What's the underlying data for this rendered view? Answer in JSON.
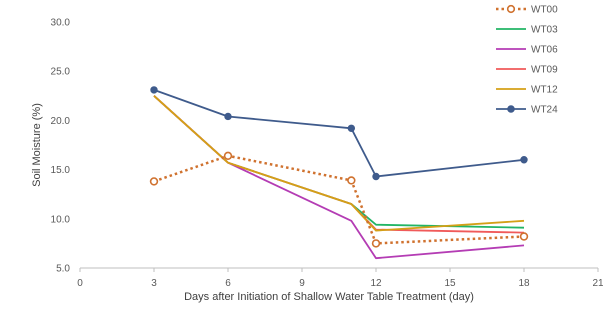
{
  "chart_data": {
    "type": "line",
    "xlabel": "Days after Initiation of Shallow Water Table Treatment (day)",
    "ylabel": "Soil Moisture (%)",
    "xlim": [
      0,
      21
    ],
    "ylim": [
      5.0,
      30.0
    ],
    "x_ticks": [
      "0",
      "3",
      "6",
      "9",
      "12",
      "15",
      "18",
      "21"
    ],
    "y_ticks": [
      "5.0",
      "10.0",
      "15.0",
      "20.0",
      "25.0",
      "30.0"
    ],
    "grid": false,
    "legend_position": "top-right",
    "series": [
      {
        "name": "WT00",
        "color": "#d0722f",
        "dash": "dotted",
        "marker": "open-circle",
        "x": [
          3,
          6,
          11,
          12,
          18
        ],
        "y": [
          13.8,
          16.4,
          13.9,
          7.5,
          8.2
        ]
      },
      {
        "name": "WT03",
        "color": "#22b565",
        "dash": "solid",
        "marker": "none",
        "x": [
          3,
          6,
          11,
          12,
          18
        ],
        "y": [
          22.5,
          15.7,
          11.5,
          9.4,
          9.1
        ]
      },
      {
        "name": "WT06",
        "color": "#b43cb4",
        "dash": "solid",
        "marker": "none",
        "x": [
          3,
          6,
          11,
          12,
          18
        ],
        "y": [
          22.5,
          15.7,
          9.8,
          6.0,
          7.3
        ]
      },
      {
        "name": "WT09",
        "color": "#f05a5a",
        "dash": "solid",
        "marker": "none",
        "x": [
          3,
          6,
          11,
          12,
          18
        ],
        "y": [
          22.5,
          15.7,
          11.5,
          8.9,
          8.6
        ]
      },
      {
        "name": "WT12",
        "color": "#d4a017",
        "dash": "solid",
        "marker": "none",
        "x": [
          3,
          6,
          11,
          12,
          18
        ],
        "y": [
          22.5,
          15.7,
          11.5,
          8.8,
          9.8
        ]
      },
      {
        "name": "WT24",
        "color": "#3f5b8c",
        "dash": "solid",
        "marker": "filled-circle",
        "x": [
          3,
          6,
          11,
          12,
          18
        ],
        "y": [
          23.1,
          20.4,
          19.2,
          14.3,
          16.0
        ]
      }
    ]
  }
}
